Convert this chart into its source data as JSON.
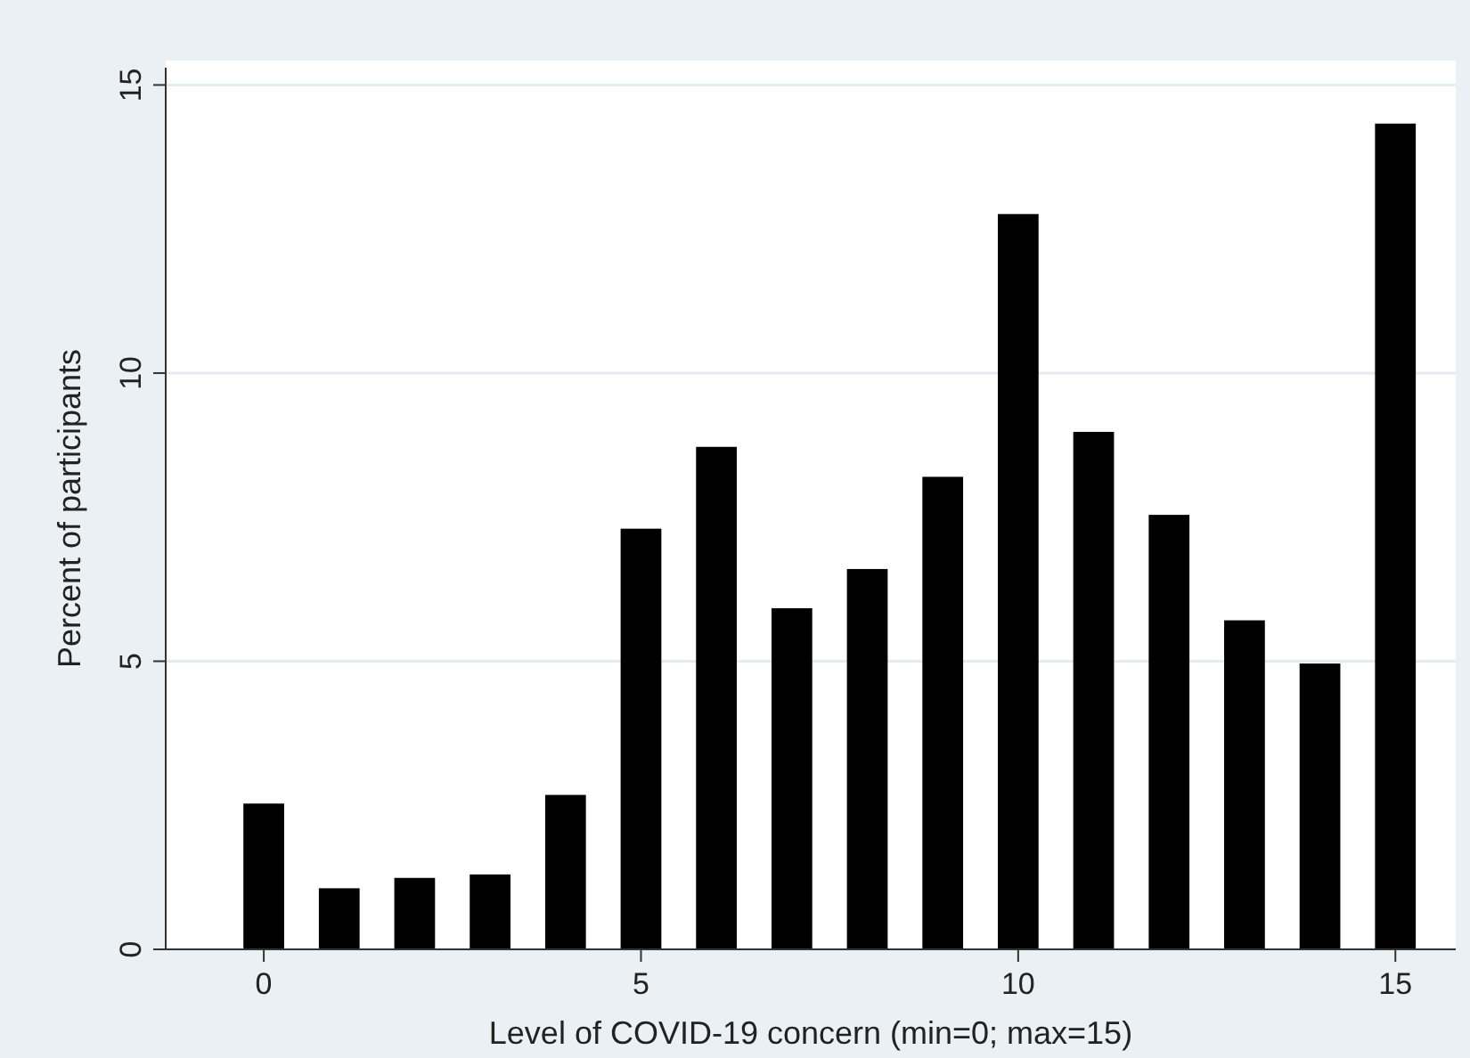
{
  "chart_data": {
    "type": "bar",
    "xlabel": "Level of COVID-19 concern (min=0; max=15)",
    "ylabel": "Percent of participants",
    "x": [
      0,
      1,
      2,
      3,
      4,
      5,
      6,
      7,
      8,
      9,
      10,
      11,
      12,
      13,
      14,
      15
    ],
    "values": [
      2.53,
      1.06,
      1.24,
      1.3,
      2.68,
      7.3,
      8.72,
      5.92,
      6.6,
      8.2,
      12.76,
      8.98,
      7.54,
      5.71,
      4.96,
      14.33
    ],
    "color": "#000000",
    "xlim": [
      -1.3,
      15.8
    ],
    "xticks": [
      0,
      5,
      10,
      15
    ],
    "ylim": [
      0,
      15.3
    ],
    "yticks": [
      0,
      5,
      10,
      15
    ],
    "grid": "y"
  }
}
